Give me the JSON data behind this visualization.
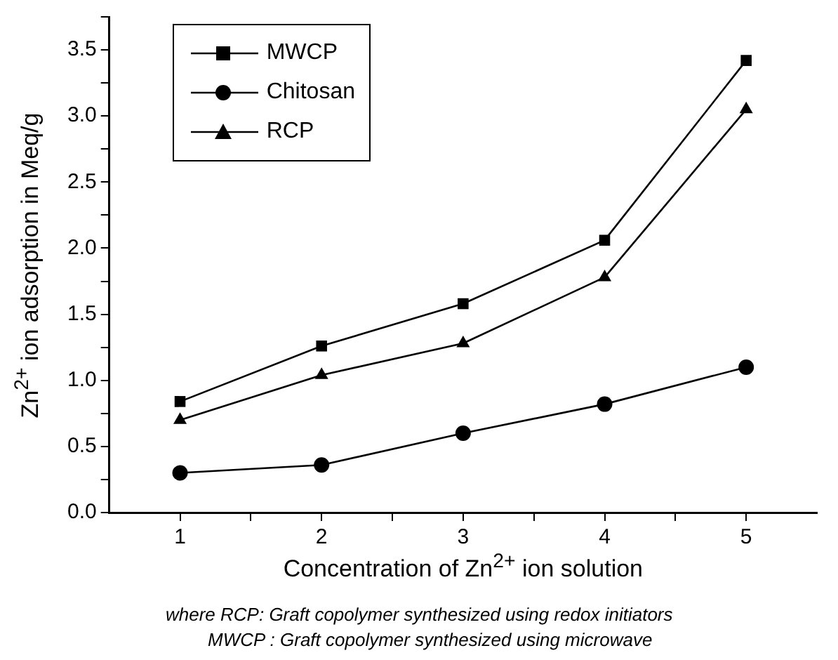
{
  "chart_data": {
    "type": "line",
    "xlabel": "Concentration of Zn$^{2+}$ ion solution",
    "ylabel": "Zn$^{2+}$ ion adsorption in Meq/g",
    "x": [
      1,
      2,
      3,
      4,
      5
    ],
    "xlim": [
      0.5,
      5.5
    ],
    "xticks": [
      1,
      {
        "value": 1.5,
        "label": null
      },
      2,
      {
        "value": 2.5,
        "label": null
      },
      3,
      {
        "value": 3.5,
        "label": null
      },
      4,
      {
        "value": 4.5,
        "label": null
      },
      5
    ],
    "ylim": [
      0,
      3.75
    ],
    "yticks": [
      {
        "value": 0,
        "label": "0.0"
      },
      {
        "value": 0.25,
        "label": null
      },
      0.5,
      {
        "value": 0.75,
        "label": null
      },
      {
        "value": 1,
        "label": "1.0"
      },
      {
        "value": 1.25,
        "label": null
      },
      1.5,
      {
        "value": 1.75,
        "label": null
      },
      {
        "value": 2,
        "label": "2.0"
      },
      {
        "value": 2.25,
        "label": null
      },
      2.5,
      {
        "value": 2.75,
        "label": null
      },
      {
        "value": 3,
        "label": "3.0"
      },
      {
        "value": 3.25,
        "label": null
      },
      3.5,
      {
        "value": 3.75,
        "label": null
      }
    ],
    "series": [
      {
        "name": "MWCP",
        "color": "#000000",
        "marker": "square",
        "values": [
          0.84,
          1.26,
          1.58,
          2.06,
          3.42
        ]
      },
      {
        "name": "Chitosan",
        "color": "#000000",
        "marker": "circle",
        "values": [
          0.3,
          0.36,
          0.6,
          0.82,
          1.1
        ]
      },
      {
        "name": "RCP",
        "color": "#000000",
        "marker": "triangle",
        "values": [
          0.7,
          1.04,
          1.28,
          1.78,
          3.05
        ]
      }
    ],
    "legend": "top left",
    "line_style": "solid",
    "annotations": [
      "where RCP: Graft copolymer synthesized using redox initiators",
      "MWCP : Graft copolymer synthesized using microwave"
    ]
  }
}
